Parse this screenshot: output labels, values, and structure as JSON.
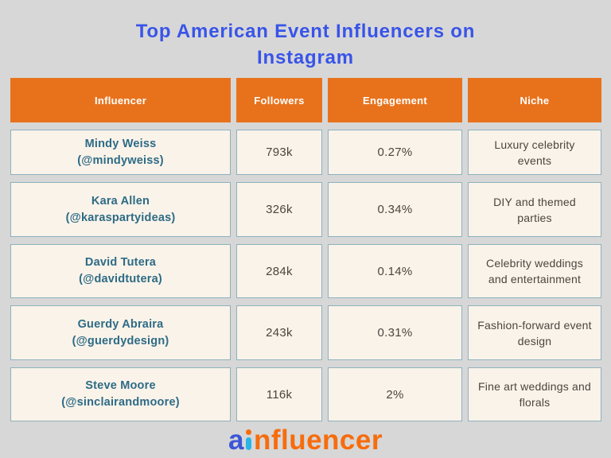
{
  "page": {
    "background_color": "#d7d7d7",
    "title": "Top American Event Influencers on Instagram",
    "title_lines": [
      "Top American Event Influencers on",
      "Instagram"
    ],
    "title_color": "#3954e8"
  },
  "table": {
    "header_bg_color": "#e8721c",
    "header_text_color": "#ffffff",
    "cell_bg_color": "#faf3e9",
    "cell_border_color": "#8db1bd",
    "name_text_color": "#2d6b86",
    "value_text_color": "#4a4540",
    "columns": [
      "Influencer",
      "Followers",
      "Engagement",
      "Niche"
    ],
    "rows": [
      {
        "name": "Mindy Weiss",
        "handle": "(@mindyweiss)",
        "followers": "793k",
        "engagement": "0.27%",
        "niche": "Luxury celebrity events"
      },
      {
        "name": "Kara Allen",
        "handle": "(@karaspartyideas)",
        "followers": "326k",
        "engagement": "0.34%",
        "niche": "DIY and themed parties"
      },
      {
        "name": "David Tutera",
        "handle": "(@davidtutera)",
        "followers": "284k",
        "engagement": "0.14%",
        "niche": "Celebrity weddings and entertainment"
      },
      {
        "name": "Guerdy Abraira",
        "handle": "(@guerdydesign)",
        "followers": "243k",
        "engagement": "0.31%",
        "niche": "Fashion-forward event design"
      },
      {
        "name": "Steve Moore",
        "handle": "(@sinclairandmoore)",
        "followers": "116k",
        "engagement": "2%",
        "niche": "Fine art weddings and florals"
      }
    ]
  },
  "footer": {
    "logo": {
      "prefix": "a",
      "suffix": "nfluencer",
      "prefix_color": "#3d56d6",
      "suffix_color": "#f76c0d",
      "i_dot_color": "#f76c0d",
      "i_stem_color": "#2ab5e8"
    }
  },
  "chart_data": {
    "type": "table",
    "title": "Top American Event Influencers on Instagram",
    "columns": [
      "Influencer",
      "Followers",
      "Engagement",
      "Niche"
    ],
    "rows": [
      [
        "Mindy Weiss (@mindyweiss)",
        "793k",
        "0.27%",
        "Luxury celebrity events"
      ],
      [
        "Kara Allen (@karaspartyideas)",
        "326k",
        "0.34%",
        "DIY and themed parties"
      ],
      [
        "David Tutera (@davidtutera)",
        "284k",
        "0.14%",
        "Celebrity weddings and entertainment"
      ],
      [
        "Guerdy Abraira (@guerdydesign)",
        "243k",
        "0.31%",
        "Fashion-forward event design"
      ],
      [
        "Steve Moore (@sinclairandmoore)",
        "116k",
        "2%",
        "Fine art weddings and florals"
      ]
    ]
  }
}
